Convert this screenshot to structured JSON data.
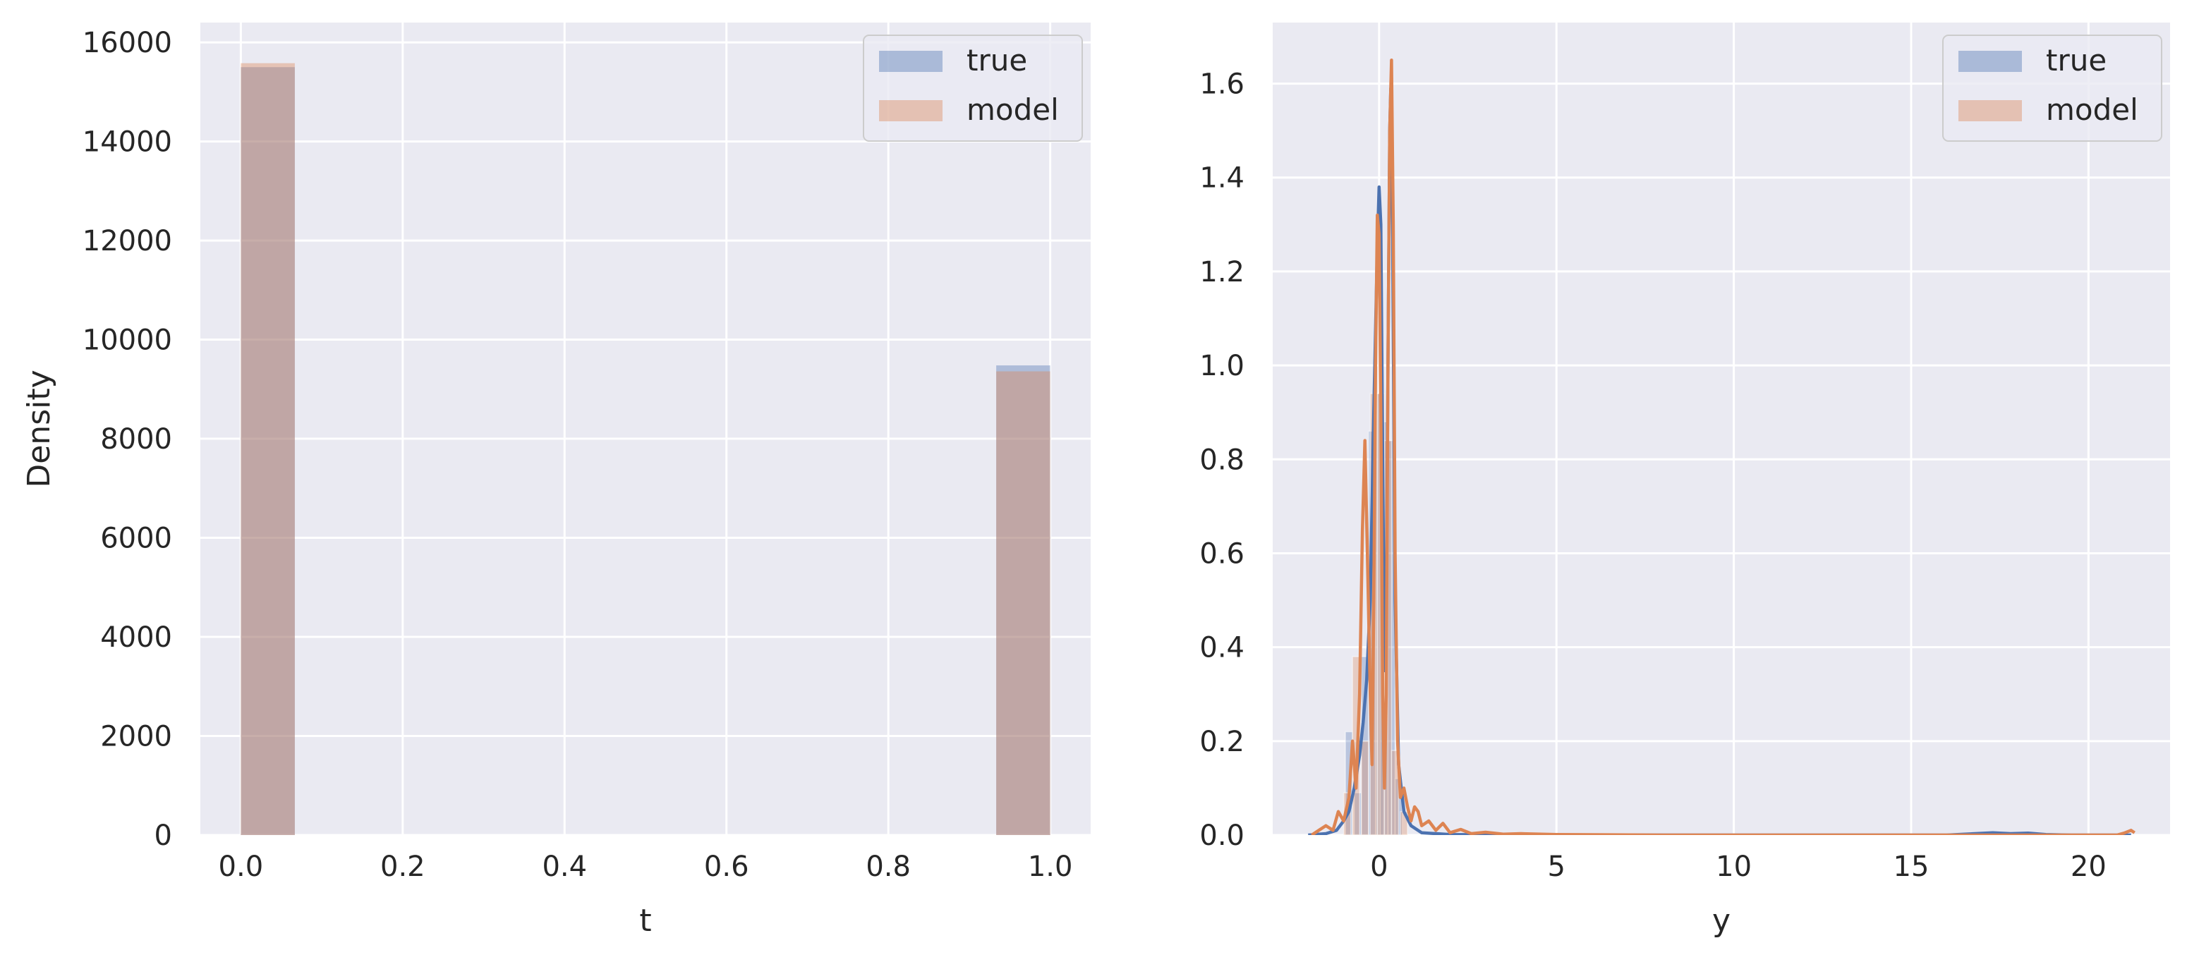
{
  "colors": {
    "background": "#eaeaf2",
    "grid": "#ffffff",
    "true": "#4c72b0",
    "model": "#dd8452",
    "overlap": "#bea6a3"
  },
  "chart_data": [
    {
      "type": "bar",
      "xlabel": "t",
      "ylabel": "Density",
      "xlim": [
        -0.05,
        1.05
      ],
      "ylim": [
        0,
        16400
      ],
      "xticks": [
        "0.0",
        "0.2",
        "0.4",
        "0.6",
        "0.8",
        "1.0"
      ],
      "yticks": [
        "0",
        "2000",
        "4000",
        "6000",
        "8000",
        "10000",
        "12000",
        "14000",
        "16000"
      ],
      "grid": true,
      "legend": {
        "position": "top-right",
        "entries": [
          "true",
          "model"
        ]
      },
      "bin_edges": [
        [
          0.0,
          0.0667
        ],
        [
          0.9333,
          1.0
        ]
      ],
      "series": [
        {
          "name": "true",
          "values": [
            15500,
            9480
          ]
        },
        {
          "name": "model",
          "values": [
            15580,
            9360
          ]
        }
      ]
    },
    {
      "type": "area",
      "xlabel": "y",
      "ylabel": "",
      "xlim": [
        -3.0,
        22.3
      ],
      "ylim": [
        0,
        1.73
      ],
      "xticks": [
        "0",
        "5",
        "10",
        "15",
        "20"
      ],
      "yticks": [
        "0.0",
        "0.2",
        "0.4",
        "0.6",
        "0.8",
        "1.0",
        "1.2",
        "1.4",
        "1.6"
      ],
      "grid": true,
      "legend": {
        "position": "top-right",
        "entries": [
          "true",
          "model"
        ]
      },
      "series": [
        {
          "name": "true",
          "hist_bins": [
            [
              -0.85,
              0.22
            ],
            [
              -0.6,
              0.09
            ],
            [
              -0.4,
              0.38
            ],
            [
              -0.2,
              0.86
            ],
            [
              0.0,
              0.94
            ],
            [
              0.15,
              0.88
            ],
            [
              0.35,
              0.84
            ],
            [
              0.55,
              0.12
            ]
          ],
          "kde": [
            [
              -2.0,
              0.0
            ],
            [
              -1.5,
              0.003
            ],
            [
              -1.2,
              0.01
            ],
            [
              -1.0,
              0.03
            ],
            [
              -0.85,
              0.05
            ],
            [
              -0.7,
              0.1
            ],
            [
              -0.55,
              0.17
            ],
            [
              -0.45,
              0.24
            ],
            [
              -0.35,
              0.33
            ],
            [
              -0.25,
              0.5
            ],
            [
              -0.15,
              0.9
            ],
            [
              -0.05,
              1.25
            ],
            [
              0.0,
              1.38
            ],
            [
              0.05,
              1.3
            ],
            [
              0.1,
              0.8
            ],
            [
              0.15,
              0.35
            ],
            [
              0.2,
              0.45
            ],
            [
              0.25,
              1.0
            ],
            [
              0.3,
              1.5
            ],
            [
              0.33,
              1.59
            ],
            [
              0.38,
              1.3
            ],
            [
              0.45,
              0.5
            ],
            [
              0.55,
              0.15
            ],
            [
              0.7,
              0.05
            ],
            [
              0.9,
              0.02
            ],
            [
              1.2,
              0.005
            ],
            [
              2.0,
              0.001
            ],
            [
              4.0,
              0.0
            ],
            [
              16.0,
              0.0
            ],
            [
              16.8,
              0.003
            ],
            [
              17.3,
              0.005
            ],
            [
              17.8,
              0.003
            ],
            [
              18.3,
              0.004
            ],
            [
              18.8,
              0.001
            ],
            [
              19.5,
              0.0
            ],
            [
              21.2,
              0.0
            ]
          ]
        },
        {
          "name": "model",
          "hist_bins": [
            [
              -0.9,
              0.09
            ],
            [
              -0.65,
              0.38
            ],
            [
              -0.4,
              0.2
            ],
            [
              -0.15,
              0.94
            ],
            [
              0.05,
              0.94
            ],
            [
              0.25,
              0.84
            ],
            [
              0.45,
              0.18
            ],
            [
              0.7,
              0.05
            ]
          ],
          "kde": [
            [
              -1.9,
              0.0
            ],
            [
              -1.7,
              0.01
            ],
            [
              -1.5,
              0.02
            ],
            [
              -1.3,
              0.01
            ],
            [
              -1.15,
              0.05
            ],
            [
              -1.0,
              0.03
            ],
            [
              -0.85,
              0.08
            ],
            [
              -0.75,
              0.2
            ],
            [
              -0.65,
              0.1
            ],
            [
              -0.55,
              0.3
            ],
            [
              -0.47,
              0.65
            ],
            [
              -0.4,
              0.84
            ],
            [
              -0.33,
              0.6
            ],
            [
              -0.25,
              0.3
            ],
            [
              -0.2,
              0.15
            ],
            [
              -0.15,
              0.5
            ],
            [
              -0.1,
              1.0
            ],
            [
              -0.05,
              1.32
            ],
            [
              0.0,
              1.28
            ],
            [
              0.05,
              0.9
            ],
            [
              0.1,
              0.3
            ],
            [
              0.15,
              0.1
            ],
            [
              0.2,
              0.3
            ],
            [
              0.25,
              1.0
            ],
            [
              0.3,
              1.5
            ],
            [
              0.35,
              1.65
            ],
            [
              0.4,
              1.3
            ],
            [
              0.45,
              0.6
            ],
            [
              0.52,
              0.2
            ],
            [
              0.6,
              0.08
            ],
            [
              0.7,
              0.1
            ],
            [
              0.8,
              0.06
            ],
            [
              0.9,
              0.03
            ],
            [
              1.0,
              0.06
            ],
            [
              1.1,
              0.05
            ],
            [
              1.2,
              0.02
            ],
            [
              1.4,
              0.03
            ],
            [
              1.6,
              0.01
            ],
            [
              1.8,
              0.025
            ],
            [
              2.0,
              0.005
            ],
            [
              2.3,
              0.012
            ],
            [
              2.6,
              0.003
            ],
            [
              3.0,
              0.006
            ],
            [
              3.5,
              0.002
            ],
            [
              4.0,
              0.003
            ],
            [
              5.0,
              0.001
            ],
            [
              8.0,
              0.0
            ],
            [
              20.8,
              0.0
            ],
            [
              21.0,
              0.004
            ],
            [
              21.2,
              0.01
            ],
            [
              21.3,
              0.005
            ]
          ]
        }
      ]
    }
  ]
}
